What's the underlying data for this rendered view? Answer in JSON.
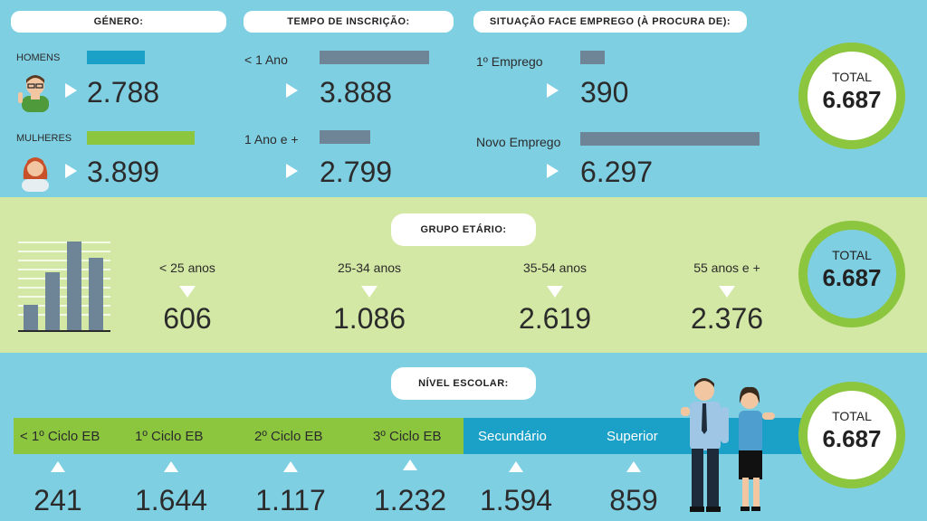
{
  "genero": {
    "title": "GÉNERO:",
    "homens_label": "HOMENS",
    "homens_value": "2.788",
    "mulheres_label": "MULHERES",
    "mulheres_value": "3.899"
  },
  "tempo": {
    "title": "TEMPO DE INSCRIÇÃO:",
    "menos_label": "< 1 Ano",
    "menos_value": "3.888",
    "mais_label": "1 Ano e +",
    "mais_value": "2.799"
  },
  "situacao": {
    "title": "SITUAÇÃO FACE EMPREGO (À PROCURA DE):",
    "primeiro_label": "1º Emprego",
    "primeiro_value": "390",
    "novo_label": "Novo Emprego",
    "novo_value": "6.297"
  },
  "grupo": {
    "title": "GRUPO ETÁRIO:",
    "items": [
      {
        "label": "< 25 anos",
        "value": "606"
      },
      {
        "label": "25-34 anos",
        "value": "1.086"
      },
      {
        "label": "35-54 anos",
        "value": "2.619"
      },
      {
        "label": "55 anos e +",
        "value": "2.376"
      }
    ]
  },
  "nivel": {
    "title": "NÍVEL ESCOLAR:",
    "items": [
      {
        "label": "< 1º Ciclo EB",
        "value": "241"
      },
      {
        "label": "1º Ciclo EB",
        "value": "1.644"
      },
      {
        "label": "2º Ciclo EB",
        "value": "1.117"
      },
      {
        "label": "3º Ciclo EB",
        "value": "1.232"
      },
      {
        "label": "Secundário",
        "value": "1.594"
      },
      {
        "label": "Superior",
        "value": "859"
      }
    ]
  },
  "total": {
    "label": "TOTAL",
    "value": "6.687"
  },
  "colors": {
    "light_blue": "#7fcfe3",
    "green": "#8cc63f",
    "light_green": "#d3e8a4",
    "blue": "#1ba1c7",
    "grey_bar": "#6e8597"
  },
  "icons": [
    "man-icon",
    "woman-icon",
    "bar-chart-icon",
    "couple-illustration"
  ]
}
